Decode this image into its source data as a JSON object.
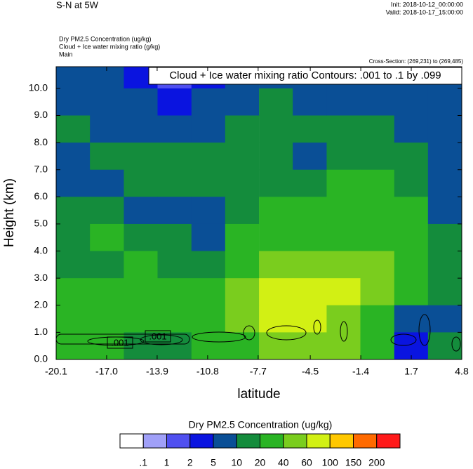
{
  "chart_data": {
    "type": "heatmap",
    "title": "S-N at 5W",
    "init_text": "Init: 2018-10-12_00:00:00",
    "valid_text": "Valid: 2018-10-17_15:00:00",
    "field_lines": [
      "Dry PM2.5 Concentration   (ug/kg)",
      "Cloud + Ice water mixing ratio   (g/kg)",
      "Main"
    ],
    "cross_section": "Cross-Section: (269,231) to (269,485)",
    "contour_info": "Cloud + Ice water mixing ratio Contours: .001 to .1 by .099",
    "contour_labels": [
      ".001",
      ".001"
    ],
    "xlabel": "latitude",
    "ylabel": "Height (km)",
    "xlim": [
      -20.1,
      4.8
    ],
    "ylim": [
      0,
      10.8
    ],
    "xticks": [
      -20.1,
      {
        "value": -17,
        "label": "-17.0"
      },
      -13.9,
      -10.8,
      -7.7,
      -4.5,
      -1.4,
      1.7,
      4.8
    ],
    "yticks": [
      {
        "value": 0,
        "label": "0.0"
      },
      {
        "value": 1,
        "label": "1.0"
      },
      {
        "value": 2,
        "label": "2.0"
      },
      {
        "value": 3,
        "label": "3.0"
      },
      {
        "value": 4,
        "label": "4.0"
      },
      {
        "value": 5,
        "label": "5.0"
      },
      {
        "value": 6,
        "label": "6.0"
      },
      {
        "value": 7,
        "label": "7.0"
      },
      {
        "value": 8,
        "label": "8.0"
      },
      {
        "value": 9,
        "label": "9.0"
      },
      {
        "value": 10,
        "label": "10.0"
      }
    ],
    "x": [
      -19.06,
      -16.99,
      -14.91,
      -12.84,
      -10.76,
      -8.69,
      -6.61,
      -4.54,
      -2.46,
      -0.39,
      1.69,
      3.76
    ],
    "y": [
      10.5,
      9.5,
      8.5,
      7.5,
      6.5,
      5.5,
      4.5,
      3.5,
      2.5,
      1.5,
      0.5
    ],
    "z": [
      [
        7,
        7,
        4,
        1.5,
        4,
        7,
        7,
        7,
        7,
        7,
        7,
        7
      ],
      [
        7,
        7,
        7,
        3,
        7,
        7,
        15,
        7,
        7,
        7,
        7,
        7
      ],
      [
        15,
        7,
        7,
        7,
        7,
        15,
        15,
        15,
        15,
        15,
        7,
        7
      ],
      [
        7,
        15,
        15,
        15,
        15,
        15,
        15,
        7,
        15,
        15,
        15,
        7
      ],
      [
        7,
        7,
        15,
        15,
        15,
        15,
        15,
        15,
        30,
        30,
        15,
        7
      ],
      [
        15,
        15,
        7,
        7,
        7,
        15,
        30,
        30,
        30,
        30,
        30,
        7
      ],
      [
        15,
        30,
        15,
        15,
        7,
        30,
        30,
        30,
        30,
        30,
        30,
        15
      ],
      [
        15,
        15,
        30,
        15,
        15,
        30,
        50,
        50,
        50,
        50,
        30,
        15
      ],
      [
        30,
        30,
        30,
        30,
        30,
        50,
        80,
        80,
        80,
        50,
        30,
        15
      ],
      [
        30,
        30,
        30,
        30,
        30,
        50,
        80,
        80,
        50,
        30,
        7,
        7
      ],
      [
        30,
        30,
        15,
        15,
        30,
        30,
        50,
        50,
        50,
        30,
        3,
        15
      ]
    ],
    "colorbar_title": "Dry PM2.5 Concentration  (ug/kg)",
    "colorbar_levels": [
      {
        "value": 0.1,
        "label": ".1"
      },
      1,
      2,
      5,
      10,
      20,
      40,
      60,
      100,
      150,
      200
    ],
    "colors": [
      "#ffffff",
      "#a0a0f8",
      "#5050f0",
      "#0a14e0",
      "#0a4f96",
      "#148c3c",
      "#2ab424",
      "#7acd1e",
      "#d2f014",
      "#ffc800",
      "#ff6a00",
      "#ff1a1a"
    ]
  }
}
